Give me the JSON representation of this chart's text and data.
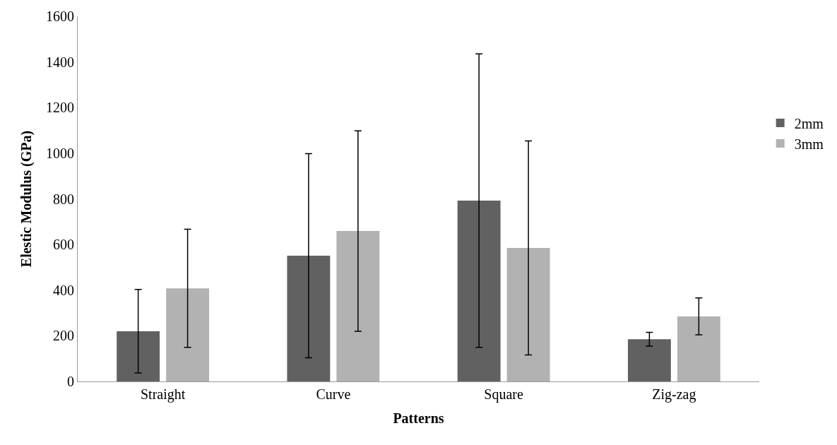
{
  "chart_data": {
    "type": "bar",
    "xlabel": "Patterns",
    "ylabel": "Elestic Modulus (GPa)",
    "categories": [
      "Straight",
      "Curve",
      "Square",
      "Zig-zag"
    ],
    "series": [
      {
        "name": "2mm",
        "color": "#616161",
        "values": [
          220,
          551,
          792,
          185
        ],
        "errors": [
          183,
          447,
          643,
          30
        ]
      },
      {
        "name": "3mm",
        "color": "#b2b2b2",
        "values": [
          408,
          659,
          585,
          285
        ],
        "errors": [
          259,
          439,
          469,
          81
        ]
      }
    ],
    "ylim": [
      0,
      1600
    ],
    "yticks": [
      0,
      200,
      400,
      600,
      800,
      1000,
      1200,
      1400,
      1600
    ],
    "legend": "right"
  }
}
